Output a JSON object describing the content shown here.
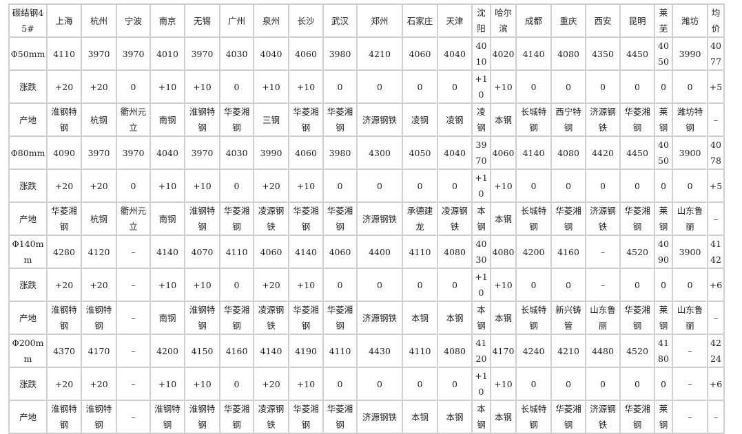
{
  "header": [
    "碳结钢45#",
    "上海",
    "杭州",
    "宁波",
    "南京",
    "无锡",
    "广州",
    "泉州",
    "长沙",
    "武汉",
    "郑州",
    "石家庄",
    "天津",
    "沈阳",
    "哈尔滨",
    "成都",
    "重庆",
    "西安",
    "昆明",
    "莱芜",
    "潍坊",
    "均价"
  ],
  "rows": [
    [
      "Φ50mm",
      "4110",
      "3970",
      "3970",
      "4010",
      "3970",
      "4030",
      "4040",
      "4060",
      "3980",
      "4210",
      "4060",
      "4040",
      "4010",
      "4020",
      "4140",
      "4080",
      "4350",
      "4450",
      "4050",
      "3990",
      "4077"
    ],
    [
      "涨跌",
      "+20",
      "+20",
      "0",
      "+10",
      "+10",
      "0",
      "+10",
      "+10",
      "0",
      "0",
      "0",
      "0",
      "+10",
      "+10",
      "0",
      "0",
      "0",
      "0",
      "0",
      "0",
      "+5"
    ],
    [
      "产地",
      "淮钢特钢",
      "杭钢",
      "衢州元立",
      "南钢",
      "淮钢特钢",
      "华菱湘钢",
      "三钢",
      "华菱湘钢",
      "华菱湘钢",
      "济源钢铁",
      "凌钢",
      "凌钢",
      "凌钢",
      "本钢",
      "长城特钢",
      "西宁特钢",
      "济源钢铁",
      "华菱湘钢",
      "莱钢",
      "潍坊特钢",
      "–"
    ],
    [
      "Φ80mm",
      "4090",
      "3970",
      "3970",
      "4040",
      "3970",
      "4030",
      "3990",
      "4060",
      "3980",
      "4300",
      "4050",
      "4040",
      "3970",
      "4060",
      "4140",
      "4080",
      "4420",
      "4450",
      "4050",
      "3900",
      "4078"
    ],
    [
      "涨跌",
      "+20",
      "+20",
      "0",
      "+10",
      "+10",
      "0",
      "+20",
      "+10",
      "0",
      "0",
      "0",
      "0",
      "+10",
      "+10",
      "0",
      "0",
      "0",
      "0",
      "0",
      "0",
      "+5"
    ],
    [
      "产地",
      "华菱湘钢",
      "杭钢",
      "衢州元立",
      "南钢",
      "淮钢特钢",
      "华菱湘钢",
      "凌源钢铁",
      "华菱湘钢",
      "华菱湘钢",
      "济源钢铁",
      "承德建龙",
      "凌源钢铁",
      "本钢",
      "本钢",
      "长城特钢",
      "华菱湘钢",
      "济源钢铁",
      "华菱湘钢",
      "莱钢",
      "山东鲁丽",
      "–"
    ],
    [
      "Φ140mm",
      "4280",
      "4120",
      "–",
      "4140",
      "4070",
      "4110",
      "4060",
      "4140",
      "4060",
      "4400",
      "4110",
      "4080",
      "4030",
      "4080",
      "4200",
      "4160",
      "–",
      "4520",
      "4090",
      "3900",
      "4142"
    ],
    [
      "涨跌",
      "+20",
      "+20",
      "–",
      "+10",
      "+10",
      "0",
      "+20",
      "+10",
      "0",
      "0",
      "0",
      "0",
      "+10",
      "+10",
      "0",
      "0",
      "–",
      "0",
      "0",
      "0",
      "+6"
    ],
    [
      "产地",
      "淮钢特钢",
      "淮钢特钢",
      "–",
      "南钢",
      "淮钢特钢",
      "华菱湘钢",
      "凌源钢铁",
      "华菱湘钢",
      "华菱湘钢",
      "济源钢铁",
      "本钢",
      "本钢",
      "本钢",
      "本钢",
      "长城特钢",
      "新兴铸管",
      "山东鲁丽",
      "华菱湘钢",
      "莱钢",
      "山东鲁丽",
      "–"
    ],
    [
      "Φ200mm",
      "4370",
      "4170",
      "–",
      "4200",
      "4150",
      "4160",
      "4140",
      "4190",
      "4110",
      "4430",
      "4110",
      "4080",
      "4120",
      "4170",
      "4240",
      "4210",
      "4480",
      "4520",
      "4180",
      "–",
      "4224"
    ],
    [
      "涨跌",
      "+20",
      "+20",
      "–",
      "+10",
      "+10",
      "0",
      "+20",
      "+10",
      "0",
      "0",
      "0",
      "0",
      "+10",
      "+10",
      "0",
      "0",
      "0",
      "0",
      "0",
      "–",
      "+6"
    ],
    [
      "产地",
      "淮钢特钢",
      "淮钢特钢",
      "–",
      "淮钢特钢",
      "淮钢特钢",
      "华菱湘钢",
      "凌源钢铁",
      "华菱湘钢",
      "华菱湘钢",
      "济源钢铁",
      "本钢",
      "本钢",
      "本钢",
      "本钢",
      "长城特钢",
      "华菱湘钢",
      "济源钢铁",
      "华菱湘钢",
      "莱钢",
      "–",
      "–"
    ]
  ]
}
